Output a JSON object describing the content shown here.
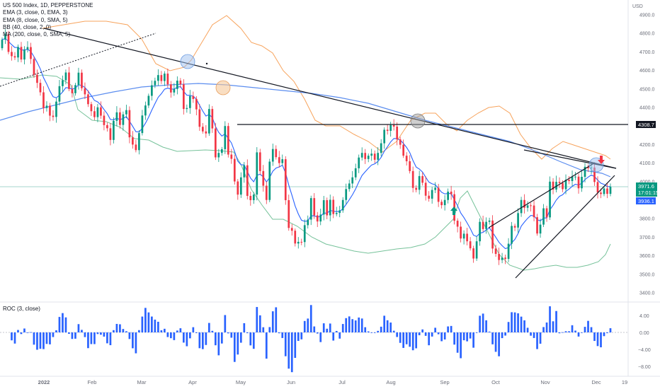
{
  "chart_data": {
    "type": "candlestick",
    "symbol_line": "US 500 Index, 1D, PEPPERSTONE",
    "indicators": [
      "EMA (3, close, 0, EMA, 3)",
      "EMA (8, close, 0, SMA, 5)",
      "BB (40, close, 2, 0)",
      "MA (200, close, 0, SMA, 5)"
    ],
    "currency_label": "USD",
    "price_axis": {
      "min": 3400,
      "max": 4900,
      "ticks": [
        "4900.0",
        "4800.0",
        "4700.0",
        "4600.0",
        "4500.0",
        "4400.0",
        "4300.0",
        "4200.0",
        "4100.0",
        "4000.0",
        "3900.0",
        "3800.0",
        "3700.0",
        "3600.0",
        "3500.0",
        "3400.0"
      ]
    },
    "time_axis": {
      "labels": [
        "2022",
        "Feb",
        "Mar",
        "Apr",
        "May",
        "Jun",
        "Jul",
        "Aug",
        "Sep",
        "Oct",
        "Nov",
        "Dec",
        "19"
      ],
      "bold_first": true
    },
    "price_tags": [
      {
        "text": "4308.7",
        "color": "#131722",
        "value": 4308.7
      },
      {
        "text": "3971.6",
        "color": "#089981",
        "value": 3971.6
      },
      {
        "text": "17:01:15",
        "color": "#089981",
        "value": 3945
      },
      {
        "text": "3936.1",
        "color": "#2962ff",
        "value": 3936.1
      }
    ],
    "closes": [
      4766,
      4796,
      4700,
      4677,
      4670,
      4727,
      4659,
      4713,
      4726,
      4662,
      4577,
      4533,
      4482,
      4397,
      4410,
      4356,
      4349,
      4432,
      4515,
      4547,
      4589,
      4500,
      4477,
      4521,
      4588,
      4504,
      4471,
      4418,
      4380,
      4348,
      4401,
      4356,
      4305,
      4288,
      4225,
      4328,
      4374,
      4306,
      4363,
      4386,
      4239,
      4200,
      4170,
      4262,
      4357,
      4411,
      4463,
      4520,
      4544,
      4575,
      4543,
      4583,
      4525,
      4481,
      4500,
      4545,
      4525,
      4392,
      4397,
      4462,
      4446,
      4390,
      4296,
      4271,
      4260,
      4392,
      4287,
      4131,
      4155,
      4175,
      4300,
      4146,
      4123,
      4001,
      3930,
      4023,
      4088,
      3923,
      3900,
      3930,
      4158,
      4057,
      3978,
      3901,
      4108,
      4176,
      4132,
      4100,
      4121,
      3900,
      3750,
      3735,
      3666,
      3675,
      3674,
      3765,
      3795,
      3911,
      3818,
      3785,
      3822,
      3900,
      3818,
      3902,
      3825,
      3831,
      3845,
      3901,
      3960,
      3990,
      4023,
      4072,
      4130,
      4155,
      4122,
      4140,
      4151,
      4118,
      4155,
      4207,
      4280,
      4274,
      4305,
      4297,
      4228,
      4199,
      4140,
      4110,
      4057,
      3966,
      3956,
      4030,
      3994,
      3924,
      3908,
      3955,
      3967,
      3891,
      3873,
      3901,
      3946,
      3932,
      3789,
      3757,
      3693,
      3719,
      3678,
      3640,
      3585,
      3678,
      3783,
      3744,
      3783,
      3790,
      3639,
      3610,
      3577,
      3590,
      3583,
      3665,
      3761,
      3752,
      3830,
      3901,
      3859,
      3872,
      3871,
      3808,
      3720,
      3768,
      3856,
      3807,
      4000,
      3957,
      3999,
      3992,
      3959,
      4010,
      4003,
      4026,
      4027,
      3964,
      4026,
      4080,
      4072,
      4076,
      3998,
      3941,
      3933,
      3963,
      3934,
      3972
    ]
  }
}
